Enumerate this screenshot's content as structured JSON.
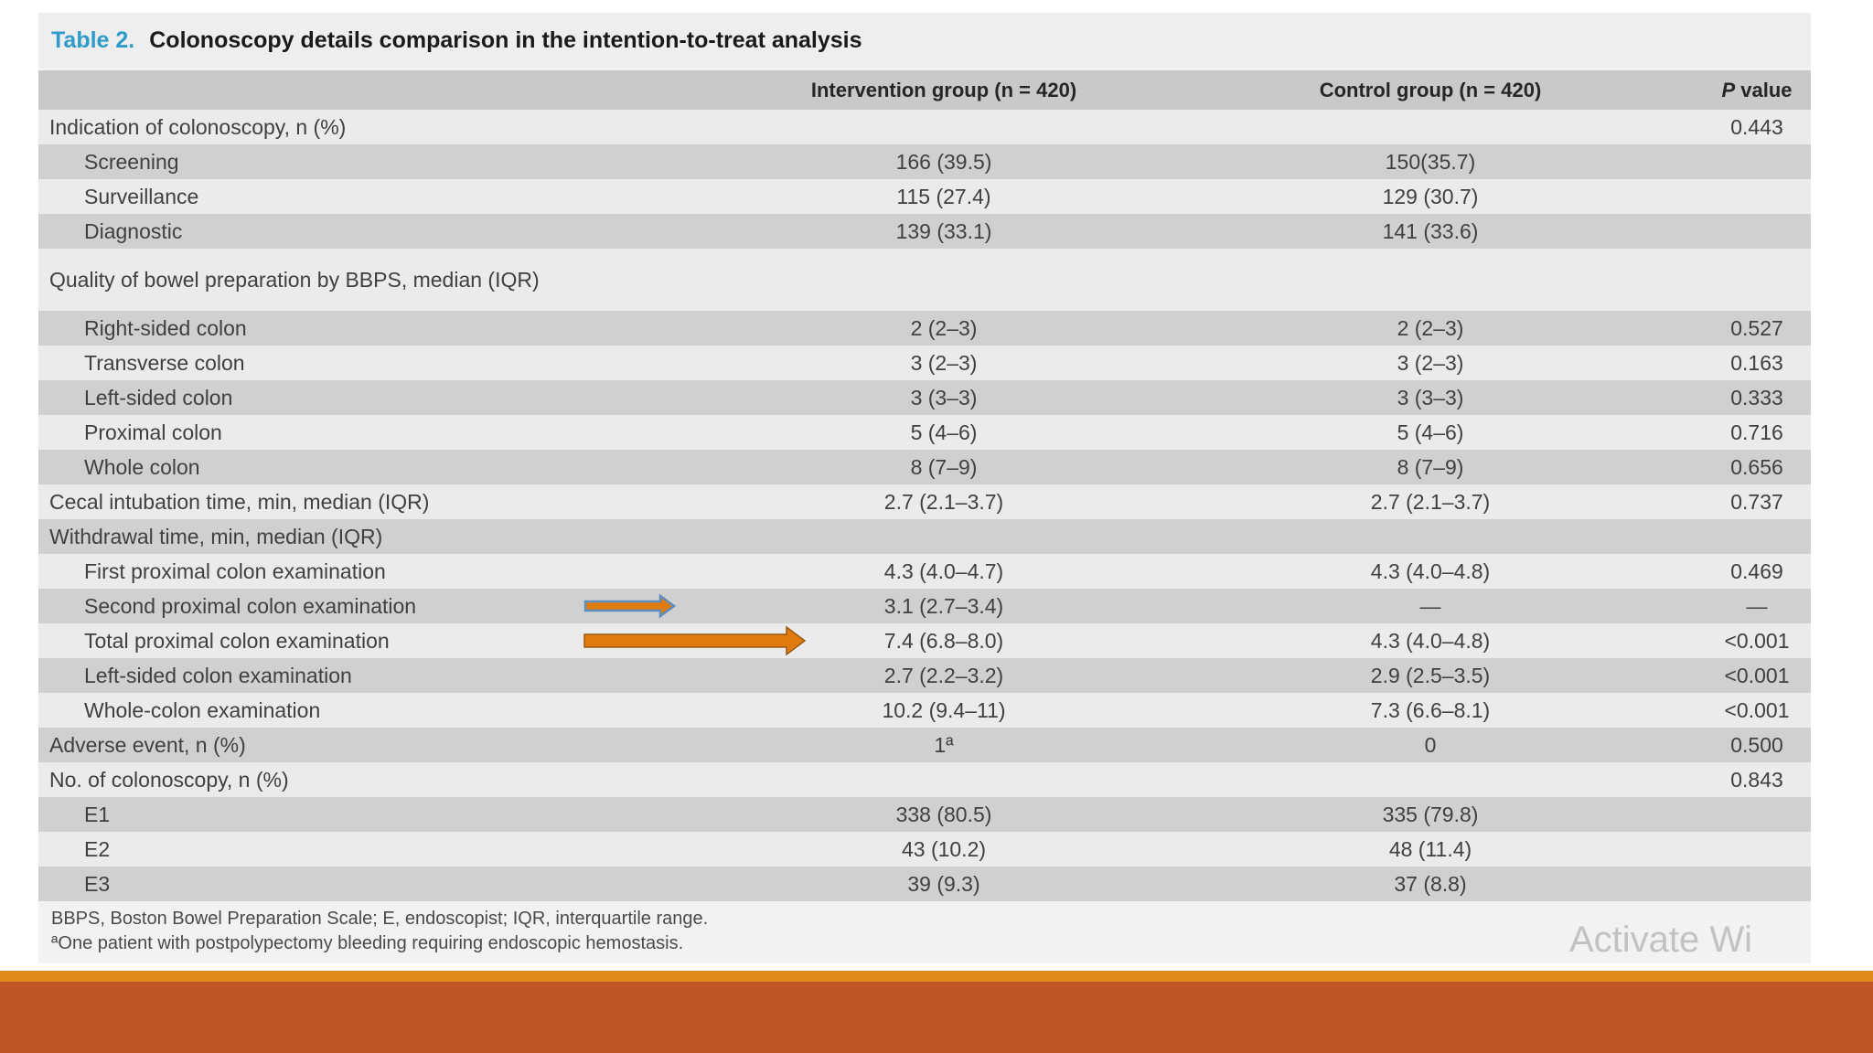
{
  "caption": {
    "label": "Table 2.",
    "title": "Colonoscopy details comparison in the intention-to-treat analysis"
  },
  "columns": {
    "intervention": "Intervention group (n = 420)",
    "control": "Control group (n = 420)",
    "p_value_italic": "P",
    "p_value_rest": " value"
  },
  "rows": [
    {
      "label": "Indication of colonoscopy, n (%)",
      "int": "",
      "ctl": "",
      "p": "0.443"
    },
    {
      "label": "Screening",
      "int": "166 (39.5)",
      "ctl": "150(35.7)",
      "p": ""
    },
    {
      "label": "Surveillance",
      "int": "115 (27.4)",
      "ctl": "129 (30.7)",
      "p": ""
    },
    {
      "label": "Diagnostic",
      "int": "139 (33.1)",
      "ctl": "141 (33.6)",
      "p": ""
    },
    {
      "label": "Quality of bowel preparation by BBPS, median (IQR)",
      "int": "",
      "ctl": "",
      "p": ""
    },
    {
      "label": "Right-sided colon",
      "int": "2 (2–3)",
      "ctl": "2 (2–3)",
      "p": "0.527"
    },
    {
      "label": "Transverse colon",
      "int": "3 (2–3)",
      "ctl": "3 (2–3)",
      "p": "0.163"
    },
    {
      "label": "Left-sided colon",
      "int": "3 (3–3)",
      "ctl": "3 (3–3)",
      "p": "0.333"
    },
    {
      "label": "Proximal colon",
      "int": "5 (4–6)",
      "ctl": "5 (4–6)",
      "p": "0.716"
    },
    {
      "label": "Whole colon",
      "int": "8 (7–9)",
      "ctl": "8 (7–9)",
      "p": "0.656"
    },
    {
      "label": "Cecal intubation time, min, median (IQR)",
      "int": "2.7 (2.1–3.7)",
      "ctl": "2.7 (2.1–3.7)",
      "p": "0.737"
    },
    {
      "label": "Withdrawal time, min, median (IQR)",
      "int": "",
      "ctl": "",
      "p": ""
    },
    {
      "label": "First proximal colon examination",
      "int": "4.3 (4.0–4.7)",
      "ctl": "4.3 (4.0–4.8)",
      "p": "0.469"
    },
    {
      "label": "Second proximal colon examination",
      "int": "3.1 (2.7–3.4)",
      "ctl": "—",
      "p": "—"
    },
    {
      "label": "Total proximal colon examination",
      "int": "7.4 (6.8–8.0)",
      "ctl": "4.3 (4.0–4.8)",
      "p": "<0.001"
    },
    {
      "label": "Left-sided colon examination",
      "int": "2.7 (2.2–3.2)",
      "ctl": "2.9 (2.5–3.5)",
      "p": "<0.001"
    },
    {
      "label": "Whole-colon examination",
      "int": "10.2 (9.4–11)",
      "ctl": "7.3 (6.6–8.1)",
      "p": "<0.001"
    },
    {
      "label": "Adverse event, n (%)",
      "int": "1ª",
      "ctl": "0",
      "p": "0.500"
    },
    {
      "label": "No. of colonoscopy, n (%)",
      "int": "",
      "ctl": "",
      "p": "0.843"
    },
    {
      "label": "E1",
      "int": "338 (80.5)",
      "ctl": "335 (79.8)",
      "p": ""
    },
    {
      "label": "E2",
      "int": "43 (10.2)",
      "ctl": "48 (11.4)",
      "p": ""
    },
    {
      "label": "E3",
      "int": "39 (9.3)",
      "ctl": "37 (8.8)",
      "p": ""
    }
  ],
  "footnotes": {
    "abbreviations": "BBPS, Boston Bowel Preparation Scale; E, endoscopist; IQR, interquartile range.",
    "note_a": "ªOne patient with postpolypectomy bleeding requiring endoscopic hemostasis."
  },
  "watermark": "Activate Wi",
  "colors": {
    "caption_label": "#2f9bc9",
    "arrow_outline_blue": "#5b8fbf",
    "arrow_fill_orange": "#e07b10",
    "band_top": "#e08a1e",
    "band": "#bf5628"
  }
}
